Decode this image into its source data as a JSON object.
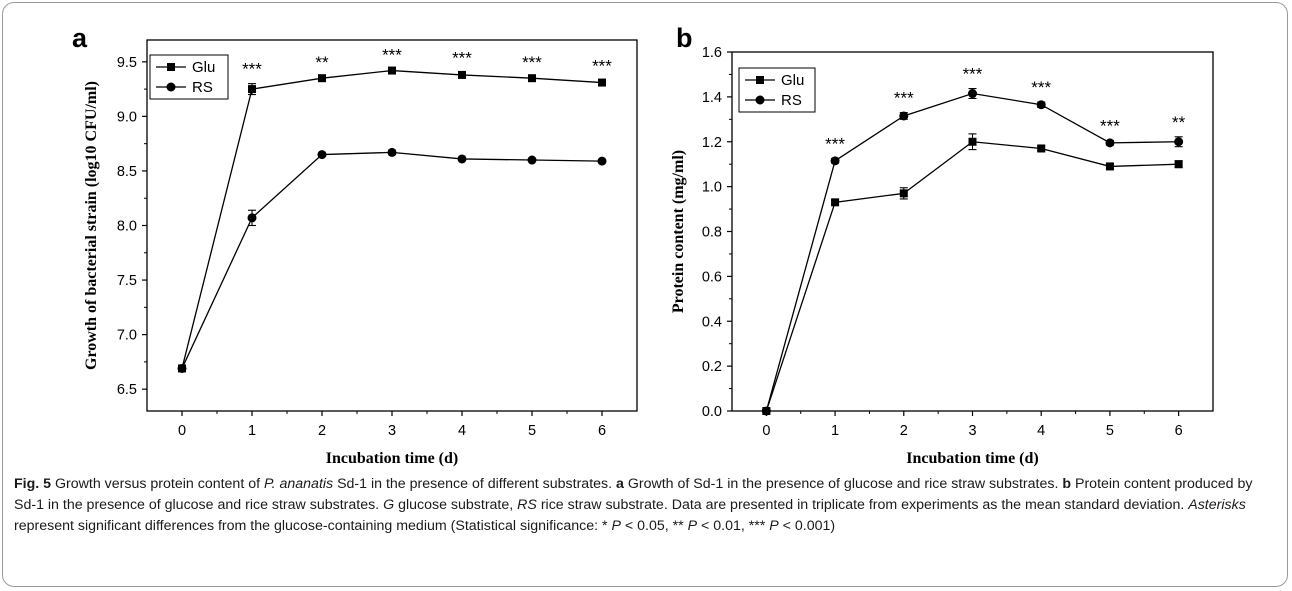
{
  "chart_data": [
    {
      "type": "line",
      "panel_label": "a",
      "xlabel": "Incubation time (d)",
      "ylabel": "Growth of bacterial strain (log10 CFU/ml)",
      "xlim": [
        -0.5,
        6.5
      ],
      "ylim": [
        6.3,
        9.7
      ],
      "xticks": [
        "0",
        "1",
        "2",
        "3",
        "4",
        "5",
        "6"
      ],
      "yticks": [
        "6.5",
        "7.0",
        "7.5",
        "8.0",
        "8.5",
        "9.0",
        "9.5"
      ],
      "legend_position": "top-left",
      "x": [
        0,
        1,
        2,
        3,
        4,
        5,
        6
      ],
      "series": [
        {
          "name": "Glu",
          "marker": "square",
          "values": [
            6.69,
            9.25,
            9.35,
            9.42,
            9.38,
            9.35,
            9.31
          ],
          "errors": [
            0.02,
            0.05,
            0.01,
            0.01,
            0.02,
            0.01,
            0.02
          ]
        },
        {
          "name": "RS",
          "marker": "circle",
          "values": [
            6.69,
            8.07,
            8.65,
            8.67,
            8.61,
            8.6,
            8.59
          ],
          "errors": [
            0.02,
            0.07,
            0.01,
            0.02,
            0.01,
            0.01,
            0.01
          ]
        }
      ],
      "significance": [
        "",
        "***",
        "**",
        "***",
        "***",
        "***",
        "***"
      ]
    },
    {
      "type": "line",
      "panel_label": "b",
      "xlabel": "Incubation time (d)",
      "ylabel": "Protein content (mg/ml)",
      "xlim": [
        -0.5,
        6.5
      ],
      "ylim": [
        0,
        1.6
      ],
      "xticks": [
        "0",
        "1",
        "2",
        "3",
        "4",
        "5",
        "6"
      ],
      "yticks": [
        "0.0",
        "0.2",
        "0.4",
        "0.6",
        "0.8",
        "1.0",
        "1.2",
        "1.4",
        "1.6"
      ],
      "legend_position": "top-left",
      "x": [
        0,
        1,
        2,
        3,
        4,
        5,
        6
      ],
      "series": [
        {
          "name": "Glu",
          "marker": "square",
          "values": [
            0.0,
            0.93,
            0.97,
            1.2,
            1.17,
            1.09,
            1.1
          ],
          "errors": [
            0.005,
            0.01,
            0.025,
            0.035,
            0.01,
            0.01,
            0.015
          ]
        },
        {
          "name": "RS",
          "marker": "circle",
          "values": [
            0.0,
            1.115,
            1.315,
            1.415,
            1.365,
            1.195,
            1.2
          ],
          "errors": [
            0.005,
            0.01,
            0.015,
            0.022,
            0.012,
            0.01,
            0.022
          ]
        }
      ],
      "significance": [
        "",
        "***",
        "***",
        "***",
        "***",
        "***",
        "**"
      ]
    }
  ],
  "caption": {
    "fig_label": "Fig. 5",
    "p1": "  Growth versus protein content of ",
    "organism": "P. ananatis",
    "p2": " Sd-1 in the presence of different substrates. ",
    "a_label": "a",
    "p3": " Growth of Sd-1 in the presence of glucose and rice straw substrates. ",
    "b_label": "b",
    "p4": " Protein content produced by Sd-1 in the presence of glucose and rice straw substrates. ",
    "g_abbr": "G",
    "p5": " glucose substrate, ",
    "rs_abbr": "RS",
    "p6": " rice straw substrate. Data are presented in triplicate from experiments as the mean standard deviation. ",
    "asterisks_word": "Asterisks",
    "p7": " represent significant differences from the glucose-containing medium (Statistical significance: * ",
    "p_sym1": "P",
    "p8": " < 0.05, ** ",
    "p_sym2": "P",
    "p9": " < 0.01, *** ",
    "p_sym3": "P",
    "p10": " < 0.001)"
  }
}
